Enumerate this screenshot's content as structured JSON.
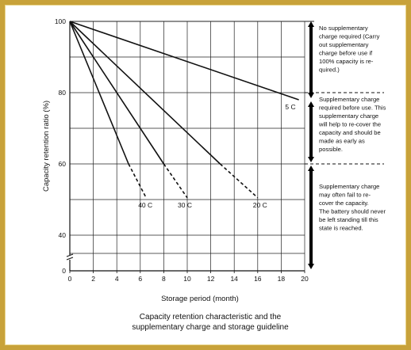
{
  "chart_data": {
    "type": "line",
    "title": "",
    "caption_lines": [
      "Capacity retention characteristic and the",
      "supplementary charge and storage guideline"
    ],
    "xlabel": "Storage period (month)",
    "ylabel": "Capacity retention ratio (%)",
    "xlim": [
      0,
      20
    ],
    "ylim": [
      0,
      100
    ],
    "x_ticks": [
      "0",
      "2",
      "4",
      "6",
      "8",
      "10",
      "12",
      "14",
      "16",
      "18",
      "20"
    ],
    "y_ticks": [
      "0",
      "40",
      "60",
      "80",
      "100"
    ],
    "grid": true,
    "axis_break": true,
    "series": [
      {
        "name": "5 C",
        "solid": [
          [
            0,
            100
          ],
          [
            19.5,
            78
          ]
        ],
        "dashed": []
      },
      {
        "name": "20 C",
        "solid": [
          [
            0,
            100
          ],
          [
            12.8,
            60
          ]
        ],
        "dashed": [
          [
            12.8,
            60
          ],
          [
            16,
            50.5
          ]
        ]
      },
      {
        "name": "30 C",
        "solid": [
          [
            0,
            100
          ],
          [
            8,
            60
          ]
        ],
        "dashed": [
          [
            8,
            60
          ],
          [
            10,
            50.5
          ]
        ]
      },
      {
        "name": "40 C",
        "solid": [
          [
            0,
            100
          ],
          [
            5,
            60
          ]
        ],
        "dashed": [
          [
            5,
            60
          ],
          [
            6.5,
            50.5
          ]
        ]
      }
    ],
    "thresholds": [
      80,
      60
    ],
    "zones": [
      {
        "range": [
          78,
          100
        ],
        "lines": [
          "No supplementary",
          "charge required (Carry",
          "out supplementary",
          "charge before use if",
          "100% capacity is re-",
          "quired.)"
        ]
      },
      {
        "range": [
          60,
          78
        ],
        "lines": [
          "Supplementary charge",
          "required before use. This",
          "supplementary charge",
          "will help to re-cover the",
          "capacity and should be",
          "made as early as",
          "possible."
        ]
      },
      {
        "range": [
          0,
          60
        ],
        "lines": [
          "Supplementary charge",
          "may often fail to re-",
          "cover the capacity.",
          "The battery should never",
          "be left standing till this",
          "state is reached."
        ]
      }
    ]
  }
}
